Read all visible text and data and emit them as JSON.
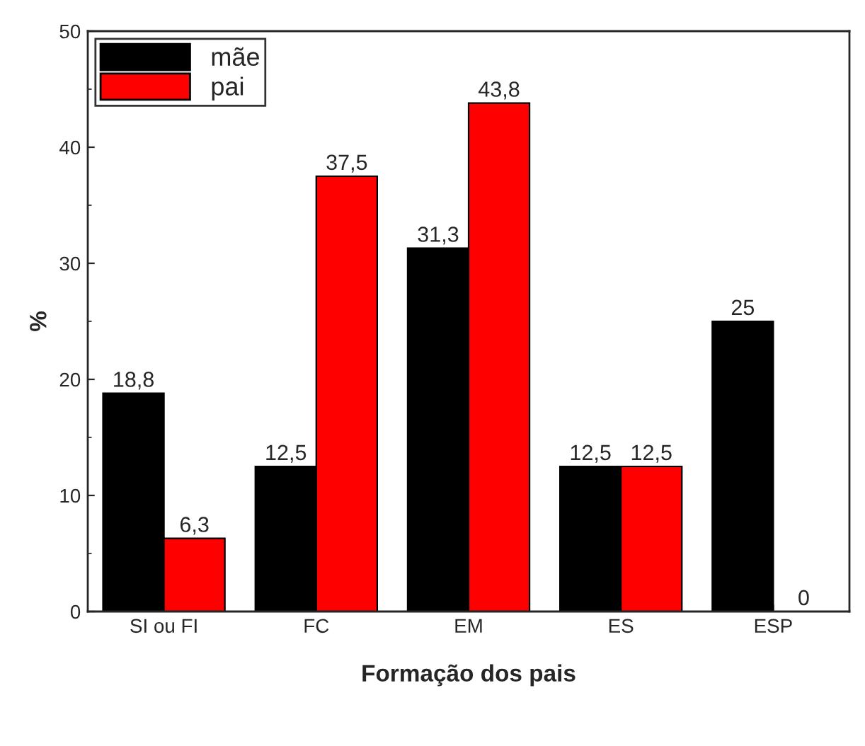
{
  "chart_data": {
    "type": "bar",
    "xlabel": "Formação dos pais",
    "ylabel": "%",
    "categories": [
      "SI ou FI",
      "FC",
      "EM",
      "ES",
      "ESP"
    ],
    "series": [
      {
        "name": "mãe",
        "color": "#000000",
        "values": [
          18.8,
          12.5,
          31.3,
          12.5,
          25
        ],
        "value_labels": [
          "18,8",
          "12,5",
          "31,3",
          "12,5",
          "25"
        ]
      },
      {
        "name": "pai",
        "color": "#ff0000",
        "values": [
          6.3,
          37.5,
          43.8,
          12.5,
          0
        ],
        "value_labels": [
          "6,3",
          "37,5",
          "43,8",
          "12,5",
          "0"
        ]
      }
    ],
    "ylim": [
      0,
      50
    ],
    "yticks": [
      0,
      10,
      20,
      30,
      40,
      50
    ],
    "legend": "top left",
    "grid": false
  }
}
